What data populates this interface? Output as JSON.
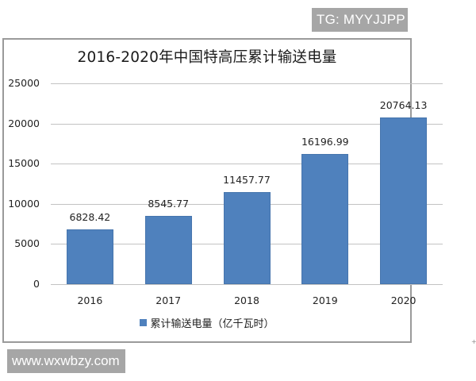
{
  "watermarks": {
    "top": "TG: MYYJJPP",
    "bottom": "www.wxwbzy.com"
  },
  "colors": {
    "bar": "#4f81bd",
    "gridline": "#c3c3c3",
    "frame": "#9a9a9a",
    "watermark_bg": "#a6a6a6"
  },
  "chart_data": {
    "type": "bar",
    "title": "2016-2020年中国特高压累计输送电量",
    "categories": [
      "2016",
      "2017",
      "2018",
      "2019",
      "2020"
    ],
    "series": [
      {
        "name": "累计输送电量（亿千瓦时）",
        "values": [
          6828.42,
          8545.77,
          11457.77,
          16196.99,
          20764.13
        ],
        "labels": [
          "6828.42",
          "8545.77",
          "11457.77",
          "16196.99",
          "20764.13"
        ]
      }
    ],
    "xlabel": "",
    "ylabel": "",
    "ylim": [
      0,
      25000
    ],
    "yticks": [
      0,
      5000,
      10000,
      15000,
      20000,
      25000
    ],
    "ytick_labels": [
      "0",
      "5000",
      "10000",
      "15000",
      "20000",
      "25000"
    ],
    "grid": true,
    "legend_position": "bottom"
  }
}
